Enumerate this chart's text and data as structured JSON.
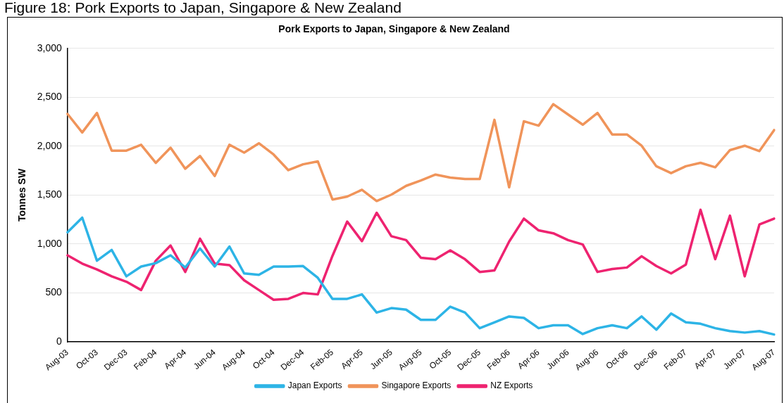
{
  "chart_data": {
    "type": "line",
    "title": "Pork Exports to Japan, Singapore & New Zealand",
    "ylabel": "Tonnes SW",
    "annotations": [
      "Figure 18: Pork Exports to Japan, Singapore & New Zealand"
    ],
    "categories": [
      "Aug-03",
      null,
      "Oct-03",
      null,
      "Dec-03",
      null,
      "Feb-04",
      null,
      "Apr-04",
      null,
      "Jun-04",
      null,
      "Aug-04",
      null,
      "Oct-04",
      null,
      "Dec-04",
      null,
      "Feb-05",
      null,
      "Apr-05",
      null,
      "Jun-05",
      null,
      "Aug-05",
      null,
      "Oct-05",
      null,
      "Dec-05",
      null,
      "Feb-06",
      null,
      "Apr-06",
      null,
      "Jun-06",
      null,
      "Aug-06",
      null,
      "Oct-06",
      null,
      "Dec-06",
      null,
      "Feb-07",
      null,
      "Apr-07",
      null,
      "Jun-07",
      null,
      "Aug-07"
    ],
    "series": [
      {
        "name": "Japan Exports",
        "color": "#2db4e6",
        "values": [
          1120,
          1270,
          830,
          940,
          670,
          770,
          805,
          885,
          760,
          955,
          770,
          975,
          700,
          685,
          770,
          770,
          775,
          655,
          440,
          440,
          485,
          300,
          345,
          330,
          225,
          225,
          360,
          300,
          140,
          200,
          260,
          245,
          140,
          170,
          170,
          80,
          140,
          170,
          140,
          260,
          125,
          290,
          200,
          185,
          140,
          110,
          95,
          110,
          75
        ]
      },
      {
        "name": "Singapore Exports",
        "color": "#f0945a",
        "values": [
          2330,
          2140,
          2340,
          1955,
          1955,
          2015,
          1830,
          1985,
          1770,
          1900,
          1695,
          2015,
          1935,
          2030,
          1915,
          1755,
          1815,
          1845,
          1455,
          1485,
          1555,
          1440,
          1505,
          1595,
          1650,
          1710,
          1680,
          1665,
          1665,
          2270,
          1580,
          2255,
          2210,
          2430,
          2325,
          2220,
          2340,
          2120,
          2120,
          2005,
          1795,
          1725,
          1795,
          1830,
          1785,
          1960,
          2005,
          1950,
          2165
        ]
      },
      {
        "name": "NZ Exports",
        "color": "#ee2370",
        "values": [
          885,
          800,
          740,
          670,
          615,
          530,
          830,
          985,
          715,
          1055,
          800,
          785,
          630,
          530,
          430,
          440,
          500,
          485,
          880,
          1230,
          1030,
          1320,
          1080,
          1040,
          860,
          845,
          935,
          845,
          715,
          730,
          1025,
          1260,
          1140,
          1110,
          1040,
          995,
          715,
          745,
          760,
          875,
          775,
          700,
          790,
          1350,
          845,
          1290,
          670,
          1200,
          1260
        ]
      }
    ],
    "ylim": [
      0,
      3000
    ],
    "yticks": [
      {
        "value": 0,
        "label": "0"
      },
      {
        "value": 500,
        "label": "500"
      },
      {
        "value": 1000,
        "label": "1,000"
      },
      {
        "value": 1500,
        "label": "1,500"
      },
      {
        "value": 2000,
        "label": "2,000"
      },
      {
        "value": 2500,
        "label": "2,500"
      },
      {
        "value": 3000,
        "label": "3,000"
      }
    ],
    "grid": "y",
    "legend": "bottom",
    "marker": "none",
    "line_style": "solid"
  }
}
